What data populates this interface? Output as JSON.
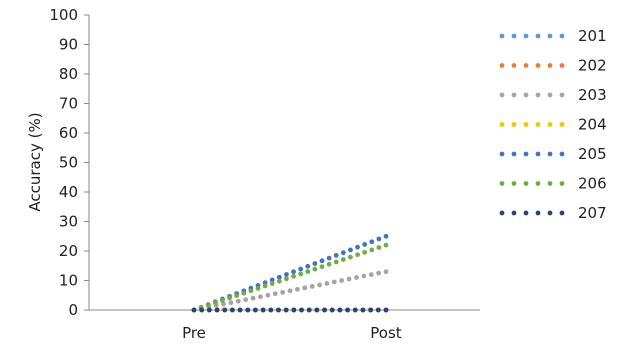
{
  "chart_data": {
    "type": "line",
    "style": "dotted",
    "title": "",
    "xlabel": "",
    "ylabel": "Accuracy (%)",
    "x": [
      "Pre",
      "Post"
    ],
    "ylim": [
      0,
      100
    ],
    "yticks": [
      0,
      10,
      20,
      30,
      40,
      50,
      60,
      70,
      80,
      90,
      100
    ],
    "grid": false,
    "legend_position": "right",
    "series": [
      {
        "name": "201",
        "color": "#5b9bd5",
        "values": [
          0,
          0
        ]
      },
      {
        "name": "202",
        "color": "#ed7d31",
        "values": [
          0,
          0
        ]
      },
      {
        "name": "203",
        "color": "#a5a5a5",
        "values": [
          0,
          13
        ]
      },
      {
        "name": "204",
        "color": "#ffc000",
        "values": [
          0,
          0
        ]
      },
      {
        "name": "205",
        "color": "#4472c4",
        "values": [
          0,
          25
        ]
      },
      {
        "name": "206",
        "color": "#70ad47",
        "values": [
          0,
          22
        ]
      },
      {
        "name": "207",
        "color": "#264478",
        "values": [
          0,
          0
        ]
      }
    ]
  }
}
